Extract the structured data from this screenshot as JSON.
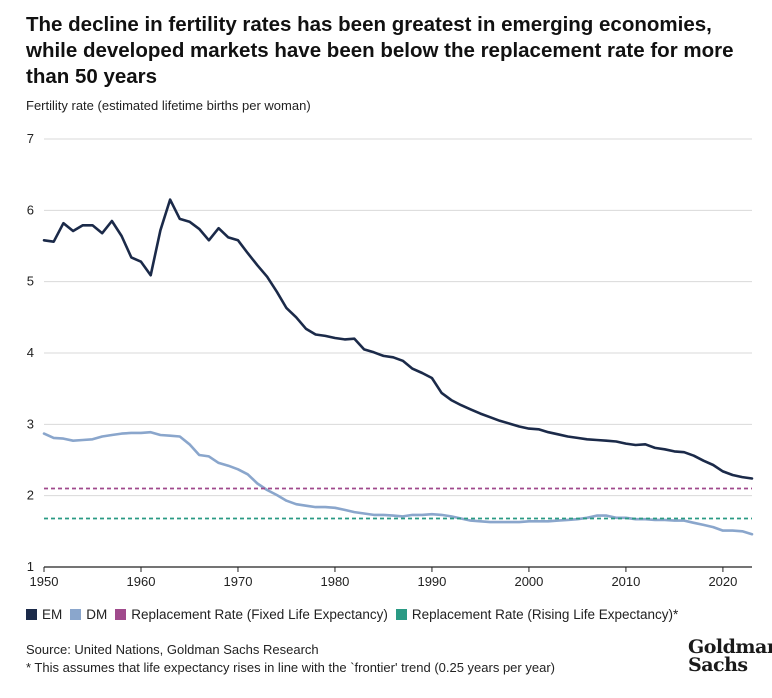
{
  "colors": {
    "em": "#1b2a49",
    "dm": "#8aa6cc",
    "rep_fixed": "#a04a8c",
    "rep_rising": "#2a9a84",
    "grid": "#d9d9d9"
  },
  "chart_data": {
    "type": "line",
    "title": "The decline in fertility rates has been greatest in emerging economies, while developed markets have been below the replacement rate for more than 50 years",
    "ylabel": "Fertility rate (estimated lifetime births per woman)",
    "xlabel": "",
    "xlim": [
      1950,
      2023
    ],
    "ylim": [
      1,
      7
    ],
    "xticks": [
      1950,
      1960,
      1970,
      1980,
      1990,
      2000,
      2010,
      2020
    ],
    "yticks": [
      1,
      2,
      3,
      4,
      5,
      6,
      7
    ],
    "grid": true,
    "legend_position": "bottom",
    "series": [
      {
        "name": "EM",
        "style": "solid",
        "x": [
          1950,
          1951,
          1952,
          1953,
          1954,
          1955,
          1956,
          1957,
          1958,
          1959,
          1960,
          1961,
          1962,
          1963,
          1964,
          1965,
          1966,
          1967,
          1968,
          1969,
          1970,
          1971,
          1972,
          1973,
          1974,
          1975,
          1976,
          1977,
          1978,
          1979,
          1980,
          1981,
          1982,
          1983,
          1984,
          1985,
          1986,
          1987,
          1988,
          1989,
          1990,
          1991,
          1992,
          1993,
          1994,
          1995,
          1996,
          1997,
          1998,
          1999,
          2000,
          2001,
          2002,
          2003,
          2004,
          2005,
          2006,
          2007,
          2008,
          2009,
          2010,
          2011,
          2012,
          2013,
          2014,
          2015,
          2016,
          2017,
          2018,
          2019,
          2020,
          2021,
          2022,
          2023
        ],
        "values": [
          5.58,
          5.56,
          5.82,
          5.71,
          5.79,
          5.79,
          5.68,
          5.85,
          5.64,
          5.34,
          5.28,
          5.09,
          5.72,
          6.15,
          5.88,
          5.84,
          5.74,
          5.58,
          5.75,
          5.62,
          5.58,
          5.4,
          5.23,
          5.07,
          4.86,
          4.63,
          4.5,
          4.34,
          4.26,
          4.24,
          4.21,
          4.19,
          4.2,
          4.05,
          4.01,
          3.96,
          3.94,
          3.89,
          3.78,
          3.72,
          3.65,
          3.44,
          3.34,
          3.27,
          3.21,
          3.15,
          3.1,
          3.05,
          3.01,
          2.97,
          2.94,
          2.93,
          2.89,
          2.86,
          2.83,
          2.81,
          2.79,
          2.78,
          2.77,
          2.76,
          2.73,
          2.71,
          2.72,
          2.67,
          2.65,
          2.62,
          2.61,
          2.56,
          2.49,
          2.43,
          2.34,
          2.29,
          2.26,
          2.24
        ]
      },
      {
        "name": "DM",
        "style": "solid",
        "x": [
          1950,
          1951,
          1952,
          1953,
          1954,
          1955,
          1956,
          1957,
          1958,
          1959,
          1960,
          1961,
          1962,
          1963,
          1964,
          1965,
          1966,
          1967,
          1968,
          1969,
          1970,
          1971,
          1972,
          1973,
          1974,
          1975,
          1976,
          1977,
          1978,
          1979,
          1980,
          1981,
          1982,
          1983,
          1984,
          1985,
          1986,
          1987,
          1988,
          1989,
          1990,
          1991,
          1992,
          1993,
          1994,
          1995,
          1996,
          1997,
          1998,
          1999,
          2000,
          2001,
          2002,
          2003,
          2004,
          2005,
          2006,
          2007,
          2008,
          2009,
          2010,
          2011,
          2012,
          2013,
          2014,
          2015,
          2016,
          2017,
          2018,
          2019,
          2020,
          2021,
          2022,
          2023
        ],
        "values": [
          2.87,
          2.81,
          2.8,
          2.77,
          2.78,
          2.79,
          2.83,
          2.85,
          2.87,
          2.88,
          2.88,
          2.89,
          2.85,
          2.84,
          2.83,
          2.72,
          2.57,
          2.55,
          2.46,
          2.42,
          2.37,
          2.3,
          2.17,
          2.08,
          2.01,
          1.93,
          1.88,
          1.86,
          1.84,
          1.84,
          1.83,
          1.8,
          1.77,
          1.75,
          1.73,
          1.73,
          1.72,
          1.71,
          1.73,
          1.73,
          1.74,
          1.73,
          1.71,
          1.68,
          1.65,
          1.64,
          1.63,
          1.63,
          1.63,
          1.63,
          1.64,
          1.64,
          1.64,
          1.65,
          1.66,
          1.67,
          1.69,
          1.72,
          1.72,
          1.69,
          1.69,
          1.67,
          1.67,
          1.66,
          1.66,
          1.65,
          1.65,
          1.62,
          1.59,
          1.56,
          1.51,
          1.51,
          1.5,
          1.46
        ]
      },
      {
        "name": "Replacement Rate (Fixed Life Expectancy)",
        "style": "dashed",
        "x": [
          1950,
          2023
        ],
        "values": [
          2.1,
          2.1
        ]
      },
      {
        "name": "Replacement Rate (Rising Life Expectancy)*",
        "style": "dashed",
        "x": [
          1950,
          2023
        ],
        "values": [
          1.68,
          1.68
        ]
      }
    ]
  },
  "footer": {
    "source": "Source: United Nations, Goldman Sachs Research",
    "footnote": "* This assumes that life expectancy rises in line with the `frontier' trend (0.25 years per year)",
    "logo_line1": "Goldman",
    "logo_line2": "Sachs"
  }
}
